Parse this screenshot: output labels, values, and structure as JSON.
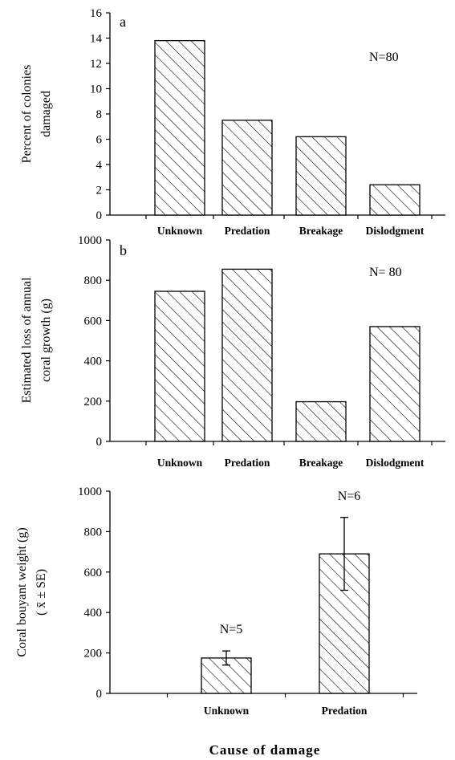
{
  "chart_data": [
    {
      "type": "bar",
      "panel_label": "a",
      "ylabel_lines": [
        "Percent of colonies",
        "damaged"
      ],
      "categories": [
        "Unknown",
        "Predation",
        "Breakage",
        "Dislodgment"
      ],
      "values": [
        13.8,
        7.5,
        6.2,
        2.4
      ],
      "ylim": [
        0,
        16
      ],
      "yticks": [
        0,
        2,
        4,
        6,
        8,
        10,
        12,
        14,
        16
      ],
      "annotation": "N=80"
    },
    {
      "type": "bar",
      "panel_label": "b",
      "ylabel_lines": [
        "Estimated loss of annual",
        "coral growth (g)"
      ],
      "categories": [
        "Unknown",
        "Predation",
        "Breakage",
        "Dislodgment"
      ],
      "values": [
        745,
        855,
        197,
        570
      ],
      "ylim": [
        0,
        1000
      ],
      "yticks": [
        0,
        200,
        400,
        600,
        800,
        1000
      ],
      "annotation": "N= 80"
    },
    {
      "type": "bar",
      "ylabel_lines": [
        "Coral bouyant weight (g)",
        "( x̄ ± SE)"
      ],
      "categories": [
        "Unknown",
        "Predation"
      ],
      "values": [
        175,
        690
      ],
      "errors": [
        35,
        180
      ],
      "bar_annotations": [
        "N=5",
        "N=6"
      ],
      "ylim": [
        0,
        1000
      ],
      "yticks": [
        0,
        200,
        400,
        600,
        800,
        1000
      ],
      "xlabel": "Cause of damage"
    }
  ]
}
